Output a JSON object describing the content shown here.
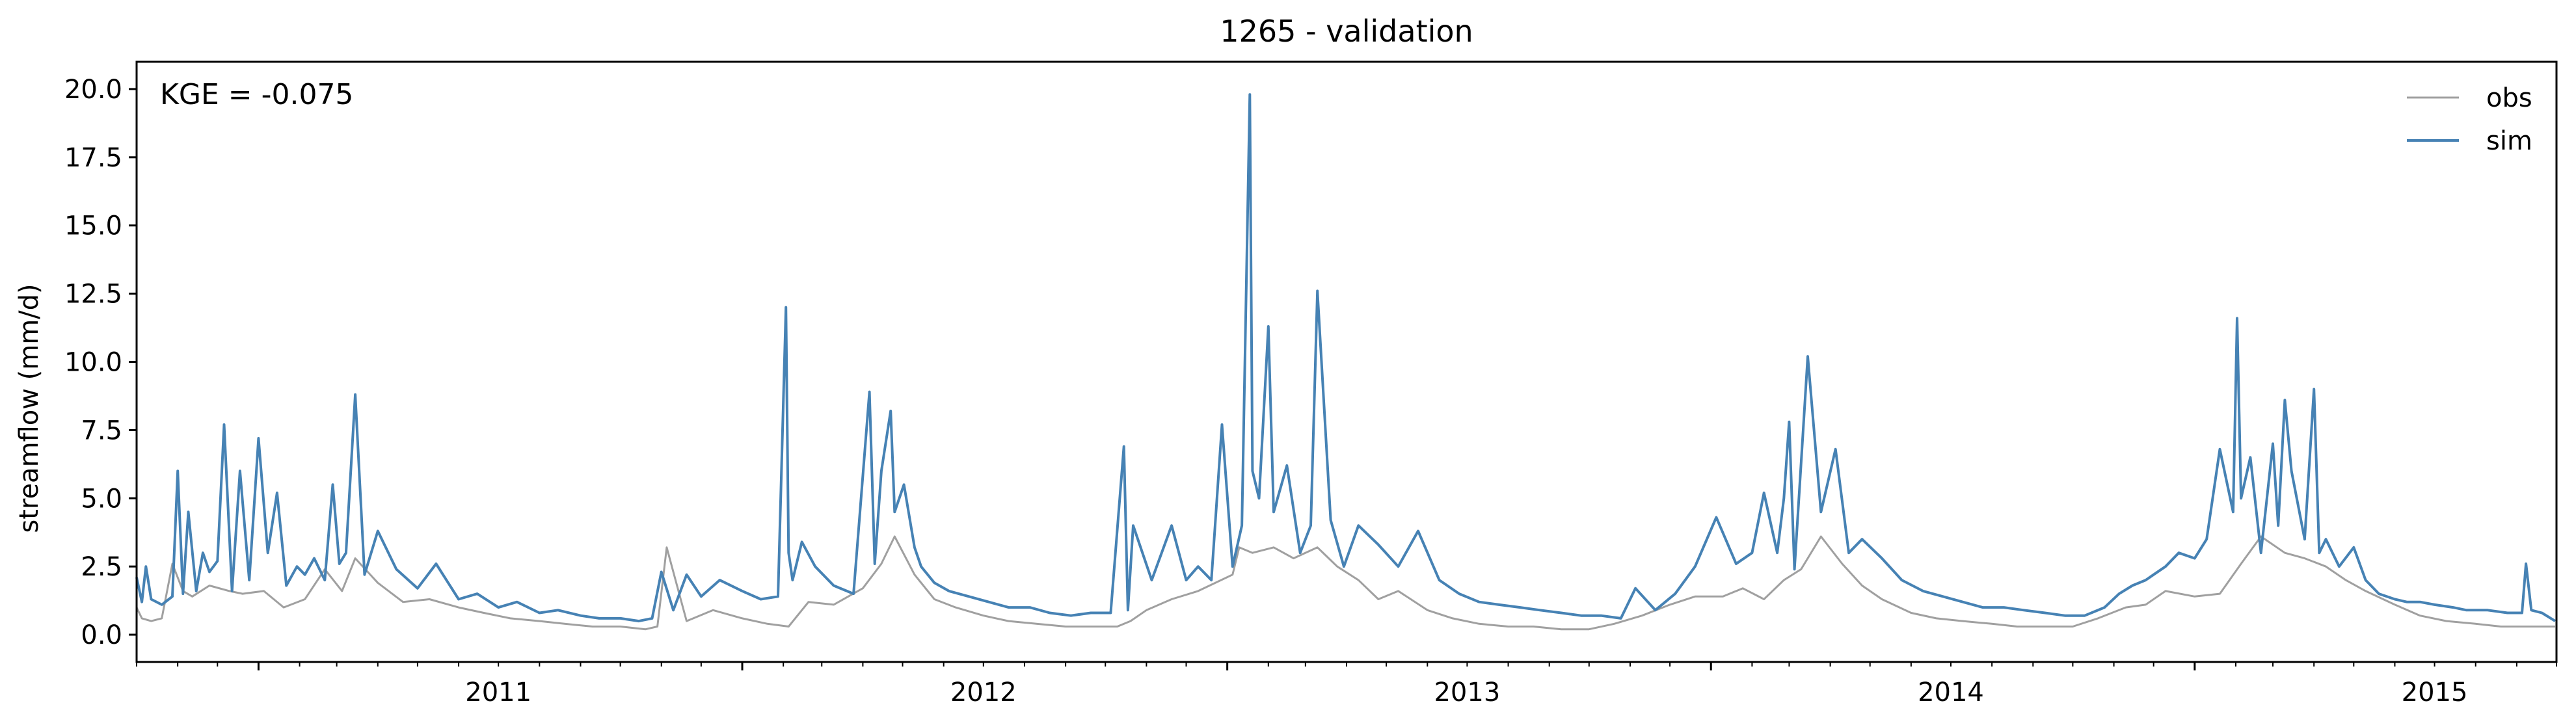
{
  "chart_data": {
    "type": "line",
    "title": "1265 - validation",
    "xlabel": "",
    "ylabel": "streamflow (mm/d)",
    "annotation": "KGE = -0.075",
    "xlim": [
      "2010-10-01",
      "2015-09-30"
    ],
    "ylim": [
      -1.0,
      21.0
    ],
    "x_ticks": [
      "2011",
      "2012",
      "2013",
      "2014",
      "2015"
    ],
    "y_ticks": [
      "0.0",
      "2.5",
      "5.0",
      "7.5",
      "10.0",
      "12.5",
      "15.0",
      "17.5",
      "20.0"
    ],
    "grid": false,
    "legend": "top-right",
    "series": [
      {
        "name": "obs",
        "color": "#a0a0a0",
        "x": [
          "2010-10-01",
          "2010-10-05",
          "2010-10-12",
          "2010-10-20",
          "2010-10-28",
          "2010-11-05",
          "2010-11-12",
          "2010-11-25",
          "2010-12-10",
          "2010-12-20",
          "2011-01-05",
          "2011-01-20",
          "2011-02-05",
          "2011-02-20",
          "2011-03-05",
          "2011-03-15",
          "2011-04-01",
          "2011-04-20",
          "2011-05-10",
          "2011-06-01",
          "2011-06-20",
          "2011-07-10",
          "2011-08-01",
          "2011-08-20",
          "2011-09-10",
          "2011-10-01",
          "2011-10-20",
          "2011-10-29",
          "2011-11-05",
          "2011-11-20",
          "2011-12-10",
          "2012-01-01",
          "2012-01-20",
          "2012-02-05",
          "2012-02-20",
          "2012-03-10",
          "2012-04-01",
          "2012-04-15",
          "2012-04-25",
          "2012-05-10",
          "2012-05-25",
          "2012-06-10",
          "2012-07-01",
          "2012-07-20",
          "2012-08-10",
          "2012-09-01",
          "2012-09-20",
          "2012-10-10",
          "2012-10-20",
          "2012-11-01",
          "2012-11-20",
          "2012-12-10",
          "2013-01-05",
          "2013-01-10",
          "2013-01-20",
          "2013-02-05",
          "2013-02-20",
          "2013-03-10",
          "2013-03-25",
          "2013-04-10",
          "2013-04-25",
          "2013-05-10",
          "2013-06-01",
          "2013-06-20",
          "2013-07-10",
          "2013-08-01",
          "2013-08-20",
          "2013-09-10",
          "2013-10-01",
          "2013-10-20",
          "2013-11-10",
          "2013-12-01",
          "2013-12-20",
          "2014-01-10",
          "2014-01-25",
          "2014-02-10",
          "2014-02-25",
          "2014-03-10",
          "2014-03-25",
          "2014-04-10",
          "2014-04-25",
          "2014-05-10",
          "2014-06-01",
          "2014-06-20",
          "2014-07-10",
          "2014-08-01",
          "2014-08-20",
          "2014-09-10",
          "2014-10-01",
          "2014-10-20",
          "2014-11-10",
          "2014-11-25",
          "2014-12-10",
          "2015-01-01",
          "2015-01-20",
          "2015-02-05",
          "2015-02-20",
          "2015-03-10",
          "2015-03-25",
          "2015-04-10",
          "2015-04-25",
          "2015-05-10",
          "2015-06-01",
          "2015-06-20",
          "2015-07-10",
          "2015-08-01",
          "2015-08-20",
          "2015-09-10",
          "2015-09-30"
        ],
        "y": [
          1.0,
          0.6,
          0.5,
          0.6,
          2.6,
          1.6,
          1.4,
          1.8,
          1.6,
          1.5,
          1.6,
          1.0,
          1.3,
          2.4,
          1.6,
          2.8,
          1.9,
          1.2,
          1.3,
          1.0,
          0.8,
          0.6,
          0.5,
          0.4,
          0.3,
          0.3,
          0.2,
          0.3,
          3.2,
          0.5,
          0.9,
          0.6,
          0.4,
          0.3,
          1.2,
          1.1,
          1.7,
          2.6,
          3.6,
          2.2,
          1.3,
          1.0,
          0.7,
          0.5,
          0.4,
          0.3,
          0.3,
          0.3,
          0.5,
          0.9,
          1.3,
          1.6,
          2.2,
          3.2,
          3.0,
          3.2,
          2.8,
          3.2,
          2.5,
          2.0,
          1.3,
          1.6,
          0.9,
          0.6,
          0.4,
          0.3,
          0.3,
          0.2,
          0.2,
          0.4,
          0.7,
          1.1,
          1.4,
          1.4,
          1.7,
          1.3,
          2.0,
          2.4,
          3.6,
          2.6,
          1.8,
          1.3,
          0.8,
          0.6,
          0.5,
          0.4,
          0.3,
          0.3,
          0.3,
          0.6,
          1.0,
          1.1,
          1.6,
          1.4,
          1.5,
          2.6,
          3.6,
          3.0,
          2.8,
          2.5,
          2.0,
          1.6,
          1.1,
          0.7,
          0.5,
          0.4,
          0.3,
          0.3,
          0.3
        ]
      },
      {
        "name": "sim",
        "color": "#4682b4",
        "x": [
          "2010-10-01",
          "2010-10-05",
          "2010-10-08",
          "2010-10-12",
          "2010-10-20",
          "2010-10-28",
          "2010-11-01",
          "2010-11-05",
          "2010-11-09",
          "2010-11-15",
          "2010-11-20",
          "2010-11-25",
          "2010-12-01",
          "2010-12-06",
          "2010-12-12",
          "2010-12-18",
          "2010-12-25",
          "2011-01-01",
          "2011-01-08",
          "2011-01-15",
          "2011-01-22",
          "2011-01-30",
          "2011-02-05",
          "2011-02-12",
          "2011-02-20",
          "2011-02-26",
          "2011-03-03",
          "2011-03-08",
          "2011-03-15",
          "2011-03-22",
          "2011-04-01",
          "2011-04-15",
          "2011-05-01",
          "2011-05-15",
          "2011-06-01",
          "2011-06-15",
          "2011-07-01",
          "2011-07-15",
          "2011-08-01",
          "2011-08-15",
          "2011-09-01",
          "2011-09-15",
          "2011-10-01",
          "2011-10-15",
          "2011-10-25",
          "2011-11-01",
          "2011-11-10",
          "2011-11-20",
          "2011-12-01",
          "2011-12-15",
          "2012-01-01",
          "2012-01-15",
          "2012-01-28",
          "2012-02-03",
          "2012-02-05",
          "2012-02-08",
          "2012-02-15",
          "2012-02-25",
          "2012-03-10",
          "2012-03-25",
          "2012-04-06",
          "2012-04-10",
          "2012-04-15",
          "2012-04-22",
          "2012-04-25",
          "2012-05-02",
          "2012-05-10",
          "2012-05-15",
          "2012-05-25",
          "2012-06-05",
          "2012-06-20",
          "2012-07-05",
          "2012-07-20",
          "2012-08-05",
          "2012-08-20",
          "2012-09-05",
          "2012-09-20",
          "2012-10-05",
          "2012-10-15",
          "2012-10-18",
          "2012-10-22",
          "2012-11-05",
          "2012-11-20",
          "2012-12-01",
          "2012-12-10",
          "2012-12-20",
          "2012-12-28",
          "2013-01-05",
          "2013-01-12",
          "2013-01-18",
          "2013-01-20",
          "2013-01-25",
          "2013-02-01",
          "2013-02-05",
          "2013-02-15",
          "2013-02-25",
          "2013-03-05",
          "2013-03-10",
          "2013-03-20",
          "2013-03-30",
          "2013-04-10",
          "2013-04-25",
          "2013-05-10",
          "2013-05-25",
          "2013-06-10",
          "2013-06-25",
          "2013-07-10",
          "2013-07-25",
          "2013-08-10",
          "2013-08-25",
          "2013-09-10",
          "2013-09-25",
          "2013-10-10",
          "2013-10-25",
          "2013-11-05",
          "2013-11-20",
          "2013-12-05",
          "2013-12-20",
          "2014-01-05",
          "2014-01-20",
          "2014-02-01",
          "2014-02-10",
          "2014-02-20",
          "2014-02-25",
          "2014-03-01",
          "2014-03-05",
          "2014-03-15",
          "2014-03-25",
          "2014-04-05",
          "2014-04-15",
          "2014-04-25",
          "2014-05-10",
          "2014-05-25",
          "2014-06-10",
          "2014-06-25",
          "2014-07-10",
          "2014-07-25",
          "2014-08-10",
          "2014-08-25",
          "2014-09-10",
          "2014-09-25",
          "2014-10-10",
          "2014-10-25",
          "2014-11-05",
          "2014-11-15",
          "2014-11-25",
          "2014-12-01",
          "2014-12-10",
          "2014-12-20",
          "2015-01-01",
          "2015-01-10",
          "2015-01-20",
          "2015-01-30",
          "2015-02-02",
          "2015-02-05",
          "2015-02-12",
          "2015-02-20",
          "2015-03-01",
          "2015-03-05",
          "2015-03-10",
          "2015-03-15",
          "2015-03-25",
          "2015-04-01",
          "2015-04-05",
          "2015-04-10",
          "2015-04-20",
          "2015-05-01",
          "2015-05-10",
          "2015-05-20",
          "2015-06-01",
          "2015-06-10",
          "2015-06-20",
          "2015-07-01",
          "2015-07-15",
          "2015-07-25",
          "2015-08-10",
          "2015-08-25",
          "2015-09-05",
          "2015-09-08",
          "2015-09-12",
          "2015-09-20",
          "2015-09-30"
        ],
        "y": [
          2.1,
          1.2,
          2.5,
          1.3,
          1.1,
          1.4,
          6.0,
          1.5,
          4.5,
          1.6,
          3.0,
          2.3,
          2.7,
          7.7,
          1.6,
          6.0,
          2.0,
          7.2,
          3.0,
          5.2,
          1.8,
          2.5,
          2.2,
          2.8,
          2.0,
          5.5,
          2.6,
          3.0,
          8.8,
          2.2,
          3.8,
          2.4,
          1.7,
          2.6,
          1.3,
          1.5,
          1.0,
          1.2,
          0.8,
          0.9,
          0.7,
          0.6,
          0.6,
          0.5,
          0.6,
          2.3,
          0.9,
          2.2,
          1.4,
          2.0,
          1.6,
          1.3,
          1.4,
          12.0,
          3.0,
          2.0,
          3.4,
          2.5,
          1.8,
          1.5,
          8.9,
          2.6,
          6.0,
          8.2,
          4.5,
          5.5,
          3.2,
          2.5,
          1.9,
          1.6,
          1.4,
          1.2,
          1.0,
          1.0,
          0.8,
          0.7,
          0.8,
          0.8,
          6.9,
          0.9,
          4.0,
          2.0,
          4.0,
          2.0,
          2.5,
          2.0,
          7.7,
          2.5,
          4.0,
          19.8,
          6.0,
          5.0,
          11.3,
          4.5,
          6.2,
          3.0,
          4.0,
          12.6,
          4.2,
          2.5,
          4.0,
          3.3,
          2.5,
          3.8,
          2.0,
          1.5,
          1.2,
          1.1,
          1.0,
          0.9,
          0.8,
          0.7,
          0.7,
          0.6,
          1.7,
          0.9,
          1.5,
          2.5,
          4.3,
          2.6,
          3.0,
          5.2,
          3.0,
          5.0,
          7.8,
          2.4,
          10.2,
          4.5,
          6.8,
          3.0,
          3.5,
          2.8,
          2.0,
          1.6,
          1.4,
          1.2,
          1.0,
          1.0,
          0.9,
          0.8,
          0.7,
          0.7,
          1.0,
          1.5,
          1.8,
          2.0,
          2.2,
          2.5,
          3.0,
          2.8,
          3.5,
          6.8,
          4.5,
          11.6,
          5.0,
          6.5,
          3.0,
          7.0,
          4.0,
          8.6,
          6.0,
          3.5,
          9.0,
          3.0,
          3.5,
          2.5,
          3.2,
          2.0,
          1.5,
          1.3,
          1.2,
          1.2,
          1.1,
          1.0,
          0.9,
          0.9,
          0.8,
          0.8,
          2.6,
          0.9,
          0.8,
          0.5
        ]
      }
    ]
  }
}
